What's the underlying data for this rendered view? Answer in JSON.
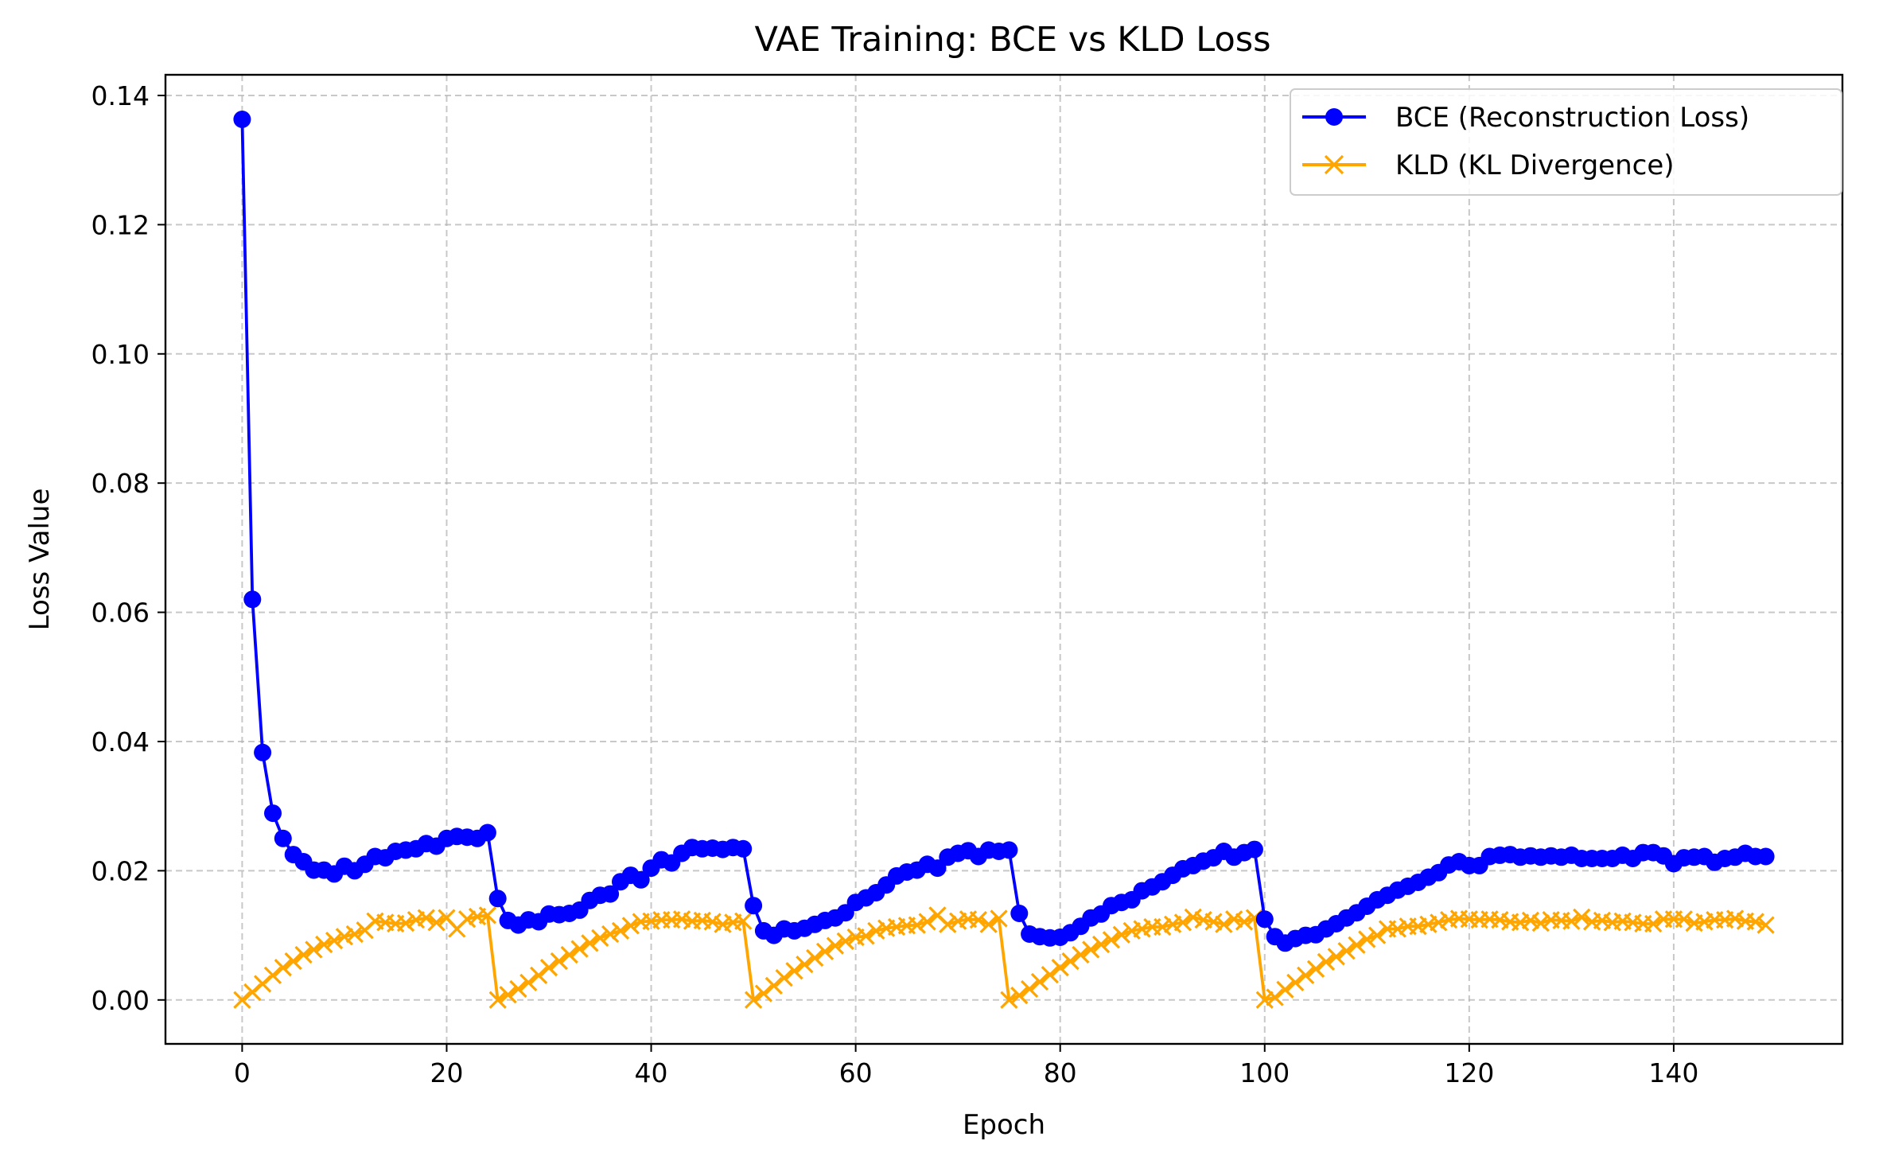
{
  "chart_data": {
    "type": "line",
    "title": "VAE Training: BCE vs KLD Loss",
    "xlabel": "Epoch",
    "ylabel": "Loss Value",
    "xlim": [
      -7.5,
      156.5
    ],
    "ylim": [
      -0.0068,
      0.1432
    ],
    "xticks": [
      0,
      20,
      40,
      60,
      80,
      100,
      120,
      140
    ],
    "yticks": [
      0.0,
      0.02,
      0.04,
      0.06,
      0.08,
      0.1,
      0.12,
      0.14
    ],
    "ytick_labels": [
      "0.00",
      "0.02",
      "0.04",
      "0.06",
      "0.08",
      "0.10",
      "0.12",
      "0.14"
    ],
    "grid": true,
    "legend_position": "top-right",
    "x": [
      0,
      1,
      2,
      3,
      4,
      5,
      6,
      7,
      8,
      9,
      10,
      11,
      12,
      13,
      14,
      15,
      16,
      17,
      18,
      19,
      20,
      21,
      22,
      23,
      24,
      25,
      26,
      27,
      28,
      29,
      30,
      31,
      32,
      33,
      34,
      35,
      36,
      37,
      38,
      39,
      40,
      41,
      42,
      43,
      44,
      45,
      46,
      47,
      48,
      49,
      50,
      51,
      52,
      53,
      54,
      55,
      56,
      57,
      58,
      59,
      60,
      61,
      62,
      63,
      64,
      65,
      66,
      67,
      68,
      69,
      70,
      71,
      72,
      73,
      74,
      75,
      76,
      77,
      78,
      79,
      80,
      81,
      82,
      83,
      84,
      85,
      86,
      87,
      88,
      89,
      90,
      91,
      92,
      93,
      94,
      95,
      96,
      97,
      98,
      99,
      100,
      101,
      102,
      103,
      104,
      105,
      106,
      107,
      108,
      109,
      110,
      111,
      112,
      113,
      114,
      115,
      116,
      117,
      118,
      119,
      120,
      121,
      122,
      123,
      124,
      125,
      126,
      127,
      128,
      129,
      130,
      131,
      132,
      133,
      134,
      135,
      136,
      137,
      138,
      139,
      140,
      141,
      142,
      143,
      144,
      145,
      146,
      147,
      148,
      149
    ],
    "series": [
      {
        "name": "BCE (Reconstruction Loss)",
        "color": "#0000ff",
        "marker": "circle",
        "values": [
          0.1363,
          0.062,
          0.0383,
          0.0289,
          0.025,
          0.0225,
          0.0214,
          0.0201,
          0.0201,
          0.0195,
          0.0207,
          0.02,
          0.021,
          0.0222,
          0.022,
          0.023,
          0.0232,
          0.0234,
          0.0242,
          0.0238,
          0.025,
          0.0253,
          0.0252,
          0.025,
          0.0259,
          0.0157,
          0.0123,
          0.0116,
          0.0124,
          0.0121,
          0.0133,
          0.0132,
          0.0134,
          0.0139,
          0.0154,
          0.0162,
          0.0164,
          0.0183,
          0.0193,
          0.0186,
          0.0204,
          0.0217,
          0.0212,
          0.0227,
          0.0236,
          0.0234,
          0.0235,
          0.0233,
          0.0236,
          0.0234,
          0.0146,
          0.0107,
          0.01,
          0.011,
          0.0107,
          0.0111,
          0.0117,
          0.0123,
          0.0127,
          0.0135,
          0.0151,
          0.0158,
          0.0166,
          0.0178,
          0.0192,
          0.0198,
          0.0201,
          0.021,
          0.0204,
          0.0221,
          0.0227,
          0.0231,
          0.0222,
          0.0232,
          0.023,
          0.0232,
          0.0134,
          0.0102,
          0.0098,
          0.0096,
          0.0097,
          0.0104,
          0.0114,
          0.0127,
          0.0133,
          0.0146,
          0.0151,
          0.0155,
          0.0169,
          0.0175,
          0.0183,
          0.0193,
          0.0203,
          0.0208,
          0.0215,
          0.022,
          0.023,
          0.0221,
          0.0228,
          0.0233,
          0.0125,
          0.0098,
          0.0088,
          0.0095,
          0.01,
          0.0101,
          0.011,
          0.0118,
          0.0127,
          0.0135,
          0.0145,
          0.0155,
          0.0162,
          0.017,
          0.0176,
          0.0182,
          0.019,
          0.0197,
          0.0209,
          0.0214,
          0.0208,
          0.0208,
          0.0222,
          0.0224,
          0.0225,
          0.0221,
          0.0223,
          0.0221,
          0.0223,
          0.0221,
          0.0224,
          0.0219,
          0.0219,
          0.0219,
          0.0219,
          0.0224,
          0.0219,
          0.0228,
          0.0228,
          0.0223,
          0.0211,
          0.022,
          0.0221,
          0.0222,
          0.0213,
          0.0219,
          0.0221,
          0.0227,
          0.0222,
          0.0222
        ]
      },
      {
        "name": "KLD (KL Divergence)",
        "color": "#ffa500",
        "marker": "x",
        "values": [
          0.0,
          0.0012,
          0.0025,
          0.0038,
          0.005,
          0.006,
          0.007,
          0.0078,
          0.0086,
          0.0092,
          0.0098,
          0.0102,
          0.0108,
          0.0122,
          0.012,
          0.0118,
          0.0119,
          0.0124,
          0.0127,
          0.012,
          0.0127,
          0.011,
          0.0125,
          0.0129,
          0.0131,
          0.0,
          0.0008,
          0.0017,
          0.0027,
          0.0038,
          0.005,
          0.006,
          0.007,
          0.0079,
          0.0088,
          0.0096,
          0.0102,
          0.0107,
          0.0115,
          0.0121,
          0.0122,
          0.0124,
          0.0124,
          0.0125,
          0.0122,
          0.0123,
          0.0121,
          0.0117,
          0.012,
          0.0122,
          0.0,
          0.001,
          0.0022,
          0.0034,
          0.0045,
          0.0055,
          0.0065,
          0.0075,
          0.0084,
          0.0091,
          0.0097,
          0.0099,
          0.0107,
          0.0111,
          0.0113,
          0.0115,
          0.0116,
          0.0121,
          0.0131,
          0.0117,
          0.0122,
          0.0125,
          0.0124,
          0.0117,
          0.0126,
          0.0,
          0.0007,
          0.0017,
          0.0028,
          0.0039,
          0.005,
          0.006,
          0.007,
          0.0078,
          0.0086,
          0.0093,
          0.0101,
          0.0107,
          0.011,
          0.0113,
          0.0113,
          0.0117,
          0.012,
          0.0128,
          0.0124,
          0.0121,
          0.0117,
          0.0125,
          0.0121,
          0.0127,
          0.0,
          0.0004,
          0.0016,
          0.0027,
          0.0038,
          0.0048,
          0.0059,
          0.0067,
          0.0076,
          0.0085,
          0.0094,
          0.01,
          0.011,
          0.011,
          0.0114,
          0.0114,
          0.0117,
          0.012,
          0.0124,
          0.0126,
          0.0125,
          0.0124,
          0.0125,
          0.0124,
          0.0121,
          0.012,
          0.0123,
          0.0119,
          0.0124,
          0.0123,
          0.0122,
          0.0128,
          0.0121,
          0.0123,
          0.012,
          0.0122,
          0.012,
          0.0118,
          0.0118,
          0.0125,
          0.0125,
          0.0125,
          0.0119,
          0.0121,
          0.0124,
          0.0124,
          0.0126,
          0.0122,
          0.0121,
          0.0116
        ]
      }
    ]
  }
}
